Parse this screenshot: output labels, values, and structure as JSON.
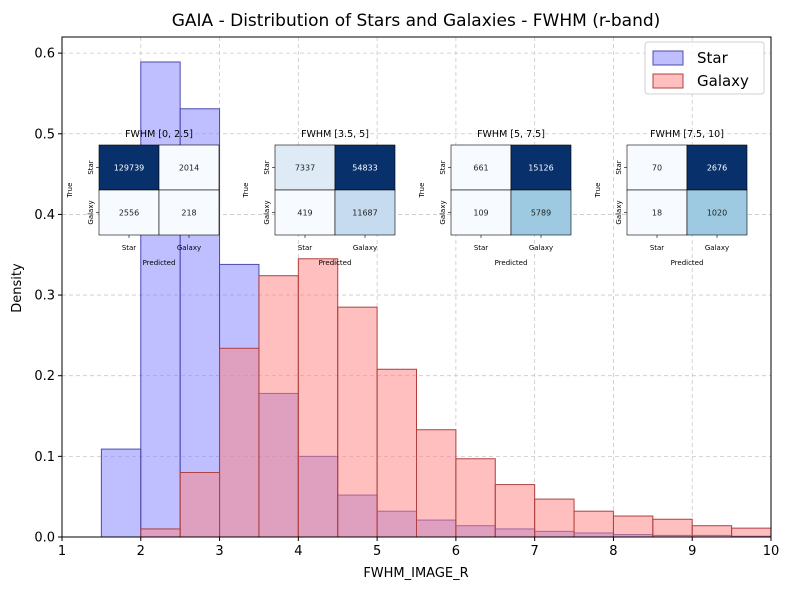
{
  "chart_data": {
    "type": "bar",
    "title": "GAIA - Distribution of Stars and Galaxies - FWHM (r-band)",
    "xlabel": "FWHM_IMAGE_R",
    "ylabel": "Density",
    "xlim": [
      1,
      10
    ],
    "ylim": [
      0,
      0.62
    ],
    "xticks": [
      1,
      2,
      3,
      4,
      5,
      6,
      7,
      8,
      9,
      10
    ],
    "yticks": [
      0.0,
      0.1,
      0.2,
      0.3,
      0.4,
      0.5,
      0.6
    ],
    "grid": true,
    "legend_position": "top-right",
    "bin_edges": [
      1.5,
      2.0,
      2.5,
      3.0,
      3.5,
      4.0,
      4.5,
      5.0,
      5.5,
      6.0,
      6.5,
      7.0,
      7.5,
      8.0,
      8.5,
      9.0,
      9.5,
      10.0
    ],
    "series": [
      {
        "name": "Star",
        "color": "#7f7fff",
        "edge": "#4b4bb0",
        "values": [
          0.109,
          0.589,
          0.531,
          0.338,
          0.178,
          0.1,
          0.052,
          0.032,
          0.021,
          0.014,
          0.01,
          0.007,
          0.005,
          0.003,
          0.002,
          0.002,
          0.001
        ]
      },
      {
        "name": "Galaxy",
        "color": "#ff7f7f",
        "edge": "#b04040",
        "values": [
          0.0,
          0.01,
          0.08,
          0.234,
          0.324,
          0.345,
          0.285,
          0.208,
          0.133,
          0.097,
          0.065,
          0.047,
          0.032,
          0.026,
          0.022,
          0.014,
          0.011
        ]
      }
    ],
    "insets": [
      {
        "title": "FWHM [0, 2.5]",
        "row_labels": [
          "Star",
          "Galaxy"
        ],
        "col_labels": [
          "Star",
          "Galaxy"
        ],
        "ylabel": "True",
        "xlabel": "Predicted",
        "matrix": [
          [
            129739,
            2014
          ],
          [
            2556,
            218
          ]
        ]
      },
      {
        "title": "FWHM [3.5, 5]",
        "row_labels": [
          "Star",
          "Galaxy"
        ],
        "col_labels": [
          "Star",
          "Galaxy"
        ],
        "ylabel": "True",
        "xlabel": "Predicted",
        "matrix": [
          [
            7337,
            54833
          ],
          [
            419,
            11687
          ]
        ]
      },
      {
        "title": "FWHM [5, 7.5]",
        "row_labels": [
          "Star",
          "Galaxy"
        ],
        "col_labels": [
          "Star",
          "Galaxy"
        ],
        "ylabel": "True",
        "xlabel": "Predicted",
        "matrix": [
          [
            661,
            15126
          ],
          [
            109,
            5789
          ]
        ]
      },
      {
        "title": "FWHM [7.5, 10]",
        "row_labels": [
          "Star",
          "Galaxy"
        ],
        "col_labels": [
          "Star",
          "Galaxy"
        ],
        "ylabel": "True",
        "xlabel": "Predicted",
        "matrix": [
          [
            70,
            2676
          ],
          [
            18,
            1020
          ]
        ]
      }
    ]
  }
}
